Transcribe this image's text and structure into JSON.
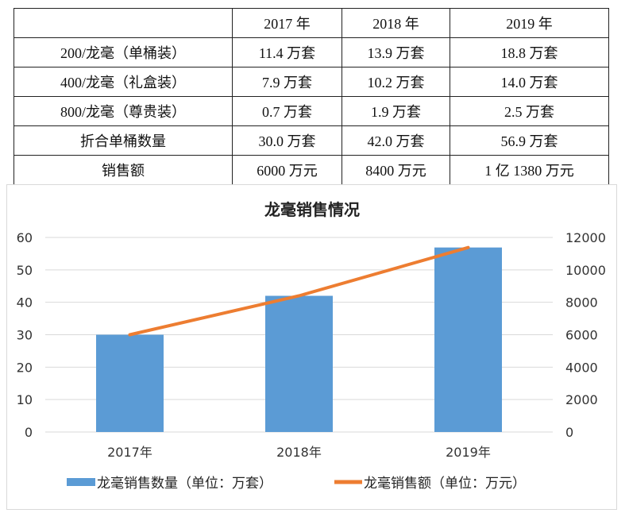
{
  "table": {
    "header": [
      "",
      "2017 年",
      "2018 年",
      "2019 年"
    ],
    "rows": [
      [
        "200/龙毫（单桶装）",
        "11.4 万套",
        "13.9 万套",
        "18.8 万套"
      ],
      [
        "400/龙毫（礼盒装）",
        "7.9 万套",
        "10.2 万套",
        "14.0 万套"
      ],
      [
        "800/龙毫（尊贵装）",
        "0.7 万套",
        "1.9 万套",
        "2.5 万套"
      ],
      [
        "折合单桶数量",
        "30.0 万套",
        "42.0 万套",
        "56.9 万套"
      ],
      [
        "销售额",
        "6000 万元",
        "8400 万元",
        "1 亿 1380 万元"
      ]
    ]
  },
  "chart_data": {
    "type": "bar",
    "title": "龙毫销售情况",
    "categories": [
      "2017年",
      "2018年",
      "2019年"
    ],
    "series": [
      {
        "name": "龙毫销售数量（单位：万套）",
        "type": "bar",
        "axis": "left",
        "values": [
          30.0,
          42.0,
          56.9
        ],
        "color": "#5b9bd5"
      },
      {
        "name": "龙毫销售额（单位：万元）",
        "type": "line",
        "axis": "right",
        "values": [
          6000,
          8400,
          11380
        ],
        "color": "#ed7d31"
      }
    ],
    "ylim": [
      0,
      60
    ],
    "yticks": [
      "0",
      "10",
      "20",
      "30",
      "40",
      "50",
      "60"
    ],
    "y2lim": [
      0,
      12000
    ],
    "y2ticks": [
      "0",
      "2000",
      "4000",
      "6000",
      "8000",
      "10000",
      "12000"
    ],
    "grid": true,
    "legend": "bottom"
  }
}
